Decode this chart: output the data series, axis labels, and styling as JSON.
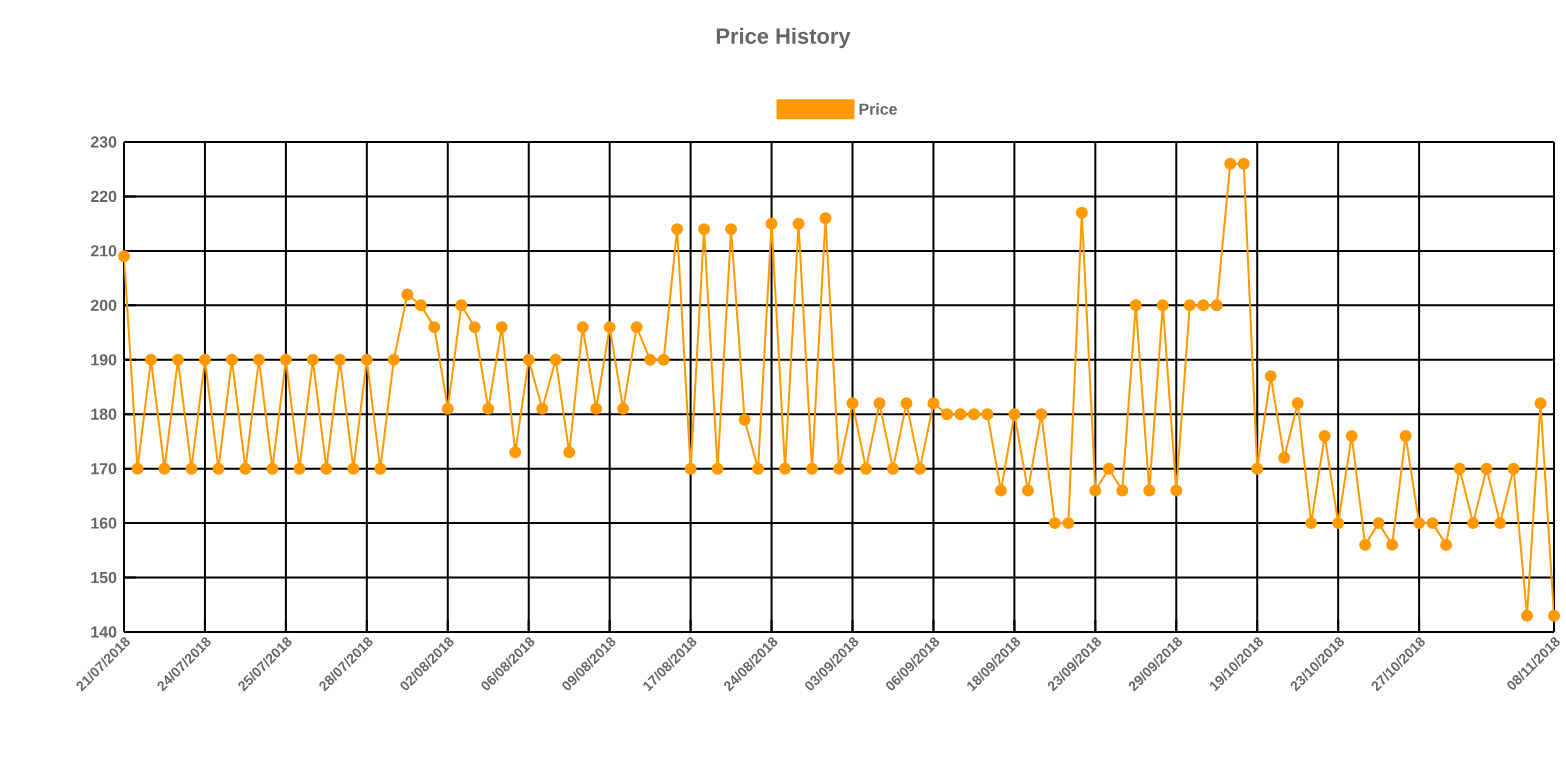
{
  "chart_data": {
    "type": "line",
    "title": "Price History",
    "categories": [
      "21/07/2018",
      null,
      null,
      null,
      null,
      null,
      "24/07/2018",
      null,
      null,
      null,
      null,
      null,
      "25/07/2018",
      null,
      null,
      null,
      null,
      null,
      "28/07/2018",
      null,
      null,
      null,
      null,
      null,
      "02/08/2018",
      null,
      null,
      null,
      null,
      null,
      "06/08/2018",
      null,
      null,
      null,
      null,
      null,
      "09/08/2018",
      null,
      null,
      null,
      null,
      null,
      "17/08/2018",
      null,
      null,
      null,
      null,
      null,
      "24/08/2018",
      null,
      null,
      null,
      null,
      null,
      "03/09/2018",
      null,
      null,
      null,
      null,
      null,
      "06/09/2018",
      null,
      null,
      null,
      null,
      null,
      "18/09/2018",
      null,
      null,
      null,
      null,
      null,
      "23/09/2018",
      null,
      null,
      null,
      null,
      null,
      "29/09/2018",
      null,
      null,
      null,
      null,
      null,
      "19/10/2018",
      null,
      null,
      null,
      null,
      null,
      "23/10/2018",
      null,
      null,
      null,
      null,
      null,
      "27/10/2018",
      null,
      null,
      null,
      null,
      null,
      null,
      null,
      null,
      null,
      "08/11/2018"
    ],
    "series": [
      {
        "name": "Price",
        "color": "#ff9900",
        "values": [
          209,
          170,
          190,
          170,
          190,
          170,
          190,
          170,
          190,
          170,
          190,
          170,
          190,
          170,
          190,
          170,
          190,
          170,
          190,
          170,
          190,
          202,
          200,
          196,
          181,
          200,
          196,
          181,
          196,
          173,
          190,
          181,
          190,
          173,
          196,
          181,
          196,
          181,
          196,
          190,
          190,
          214,
          170,
          214,
          170,
          214,
          179,
          170,
          215,
          170,
          215,
          170,
          216,
          170,
          182,
          170,
          182,
          170,
          182,
          170,
          182,
          180,
          180,
          180,
          180,
          166,
          180,
          166,
          180,
          160,
          160,
          217,
          166,
          170,
          166,
          200,
          166,
          200,
          166,
          200,
          200,
          200,
          226,
          226,
          170,
          187,
          172,
          182,
          160,
          176,
          160,
          176,
          156,
          160,
          156,
          176,
          160,
          160,
          156,
          170,
          160,
          170,
          160,
          170,
          143,
          182,
          143
        ]
      }
    ],
    "ylim": [
      140,
      230
    ],
    "yticks": [
      140,
      150,
      160,
      170,
      180,
      190,
      200,
      210,
      220,
      230
    ],
    "grid": true,
    "legend": "top",
    "marker": "circle",
    "line_style": "solid"
  }
}
